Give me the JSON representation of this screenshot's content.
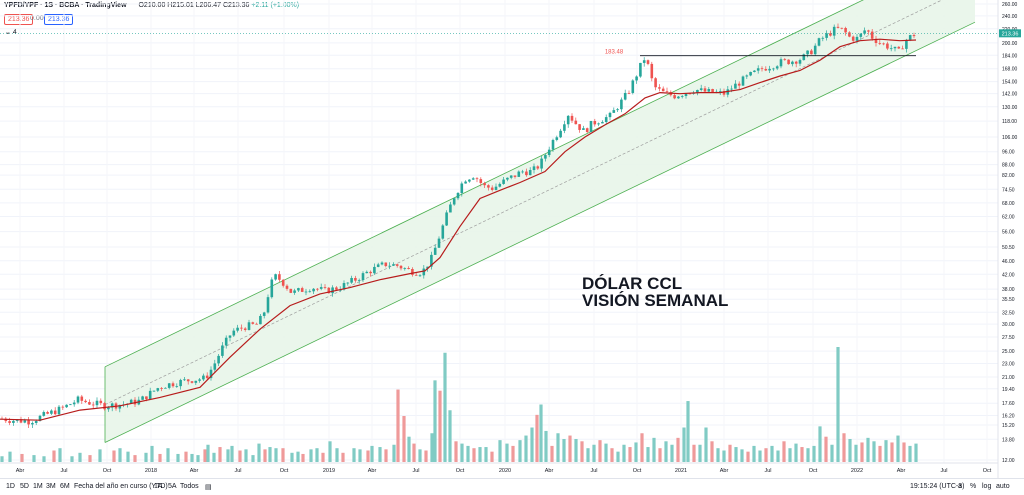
{
  "header": {
    "symbol": "YPFD/YPF · 1S · BCBA · TradingView",
    "ohlc": "O210.00 H215.01 L206.47 C213.36",
    "change": "+2.11 (+1.00%)",
    "price_left": "213.36",
    "price_zero": "0.00",
    "price_right": "213.36",
    "indicator": "4"
  },
  "annotations": {
    "title_line1": "DÓLAR CCL",
    "title_line2": "VISIÓN SEMANAL",
    "peak_label": "183.48",
    "last_price": "213.36"
  },
  "toolbar": {
    "timeframes": [
      "1D",
      "5D",
      "1M",
      "3M",
      "6M",
      "Fecha del año en curso (YTD)",
      "1A",
      "5A",
      "Todos"
    ],
    "clock": "19:15:24 (UTC-3)",
    "right_buttons": [
      "a",
      "%",
      "log",
      "auto"
    ]
  },
  "colors": {
    "up": "#26a69a",
    "down": "#ef5350",
    "ma": "#b71c1c",
    "channel_fill": "#e8f5e9",
    "channel_line": "#4caf50",
    "volume_up": "#80cbc4",
    "volume_down": "#ef9a9a"
  },
  "chart_data": {
    "type": "candlestick",
    "scale": "log",
    "ylim": [
      12,
      260
    ],
    "y_ticks": [
      12,
      13.8,
      15.2,
      16.2,
      17.6,
      19.4,
      21,
      23,
      25,
      27.5,
      30,
      32.5,
      35.5,
      38,
      42,
      46,
      50.5,
      56,
      62,
      68,
      74.5,
      82,
      88,
      96,
      106,
      118,
      130,
      142,
      154,
      168,
      184,
      200,
      220,
      240,
      260
    ],
    "x_labels": [
      "Abr",
      "Jul",
      "Oct",
      "2018",
      "Abr",
      "Jul",
      "Oct",
      "2019",
      "Abr",
      "Jul",
      "Oct",
      "2020",
      "Abr",
      "Jul",
      "Oct",
      "2021",
      "Abr",
      "Jul",
      "Oct",
      "2022",
      "Abr",
      "Jul",
      "Oct"
    ],
    "price_path": [
      [
        0,
        15.9
      ],
      [
        12,
        15.7
      ],
      [
        30,
        15.6
      ],
      [
        44,
        16.2
      ],
      [
        62,
        17.0
      ],
      [
        78,
        18.0
      ],
      [
        92,
        17.6
      ],
      [
        105,
        17.3
      ],
      [
        125,
        17.5
      ],
      [
        140,
        17.9
      ],
      [
        150,
        18.8
      ],
      [
        160,
        19.7
      ],
      [
        175,
        20.2
      ],
      [
        190,
        20.6
      ],
      [
        205,
        20.8
      ],
      [
        213,
        22.5
      ],
      [
        222,
        25.5
      ],
      [
        232,
        28.5
      ],
      [
        245,
        29.5
      ],
      [
        258,
        30.0
      ],
      [
        265,
        33.0
      ],
      [
        270,
        39.0
      ],
      [
        276,
        41.5
      ],
      [
        284,
        39.5
      ],
      [
        292,
        37.0
      ],
      [
        302,
        37.8
      ],
      [
        312,
        38.5
      ],
      [
        325,
        37.5
      ],
      [
        340,
        38.5
      ],
      [
        355,
        40.5
      ],
      [
        370,
        43.0
      ],
      [
        385,
        45.0
      ],
      [
        398,
        44.5
      ],
      [
        410,
        43.0
      ],
      [
        422,
        42.5
      ],
      [
        432,
        47.0
      ],
      [
        440,
        55.0
      ],
      [
        448,
        64.0
      ],
      [
        455,
        72.0
      ],
      [
        465,
        80.0
      ],
      [
        474,
        82.0
      ],
      [
        484,
        76.0
      ],
      [
        493,
        75.0
      ],
      [
        502,
        78.0
      ],
      [
        512,
        81.0
      ],
      [
        522,
        84.0
      ],
      [
        532,
        84.0
      ],
      [
        540,
        88.0
      ],
      [
        550,
        100.0
      ],
      [
        560,
        112.0
      ],
      [
        568,
        124.0
      ],
      [
        576,
        116.0
      ],
      [
        584,
        110.0
      ],
      [
        592,
        116.0
      ],
      [
        600,
        119.0
      ],
      [
        610,
        122.0
      ],
      [
        620,
        133.0
      ],
      [
        628,
        143.0
      ],
      [
        636,
        160.0
      ],
      [
        642,
        175.0
      ],
      [
        646,
        183.48
      ],
      [
        650,
        160.0
      ],
      [
        656,
        147.0
      ],
      [
        665,
        142.0
      ],
      [
        675,
        140.0
      ],
      [
        685,
        143.0
      ],
      [
        695,
        146.0
      ],
      [
        705,
        144.0
      ],
      [
        715,
        143.0
      ],
      [
        725,
        142.0
      ],
      [
        732,
        148.0
      ],
      [
        742,
        155.0
      ],
      [
        752,
        162.0
      ],
      [
        762,
        168.0
      ],
      [
        772,
        172.0
      ],
      [
        782,
        176.0
      ],
      [
        792,
        177.0
      ],
      [
        802,
        180.0
      ],
      [
        812,
        190.0
      ],
      [
        820,
        204.0
      ],
      [
        828,
        212.0
      ],
      [
        836,
        220.0
      ],
      [
        843,
        218.0
      ],
      [
        850,
        207.0
      ],
      [
        858,
        206.0
      ],
      [
        866,
        220.0
      ],
      [
        872,
        208.0
      ],
      [
        880,
        200.0
      ],
      [
        887,
        196.0
      ],
      [
        893,
        192.0
      ],
      [
        899,
        188.0
      ],
      [
        905,
        203.0
      ],
      [
        911,
        209.0
      ],
      [
        916,
        213.36
      ]
    ],
    "ma_path": [
      [
        0,
        15.8
      ],
      [
        40,
        15.7
      ],
      [
        80,
        16.8
      ],
      [
        120,
        17.3
      ],
      [
        160,
        18.3
      ],
      [
        200,
        19.6
      ],
      [
        230,
        24.0
      ],
      [
        260,
        29.0
      ],
      [
        290,
        34.0
      ],
      [
        320,
        36.8
      ],
      [
        350,
        38.4
      ],
      [
        380,
        40.5
      ],
      [
        410,
        42.2
      ],
      [
        425,
        43.0
      ],
      [
        440,
        47.0
      ],
      [
        460,
        58.0
      ],
      [
        480,
        70.0
      ],
      [
        500,
        74.0
      ],
      [
        520,
        78.0
      ],
      [
        545,
        84.0
      ],
      [
        565,
        96.0
      ],
      [
        585,
        106.0
      ],
      [
        605,
        115.0
      ],
      [
        625,
        124.0
      ],
      [
        645,
        138.0
      ],
      [
        660,
        143.0
      ],
      [
        680,
        142.0
      ],
      [
        700,
        143.0
      ],
      [
        720,
        143.0
      ],
      [
        740,
        146.0
      ],
      [
        760,
        153.0
      ],
      [
        780,
        160.0
      ],
      [
        800,
        166.0
      ],
      [
        820,
        178.0
      ],
      [
        840,
        195.0
      ],
      [
        860,
        203.0
      ],
      [
        880,
        205.0
      ],
      [
        900,
        203.0
      ],
      [
        916,
        204.0
      ]
    ],
    "channel": {
      "x_start": 105,
      "x_end": 975,
      "lower_start": 13.5,
      "lower_end": 230,
      "upper_start": 22.5,
      "upper_end": 385
    },
    "horizontal_line": {
      "value": 183.48,
      "x_from": 640,
      "x_to": 916
    },
    "volume": [
      [
        2,
        0.05,
        "up"
      ],
      [
        10,
        0.09,
        "up"
      ],
      [
        22,
        0.07,
        "down"
      ],
      [
        34,
        0.06,
        "up"
      ],
      [
        44,
        0.05,
        "up"
      ],
      [
        54,
        0.1,
        "down"
      ],
      [
        60,
        0.12,
        "up"
      ],
      [
        72,
        0.05,
        "up"
      ],
      [
        80,
        0.08,
        "up"
      ],
      [
        90,
        0.06,
        "down"
      ],
      [
        100,
        0.11,
        "up"
      ],
      [
        114,
        0.1,
        "down"
      ],
      [
        120,
        0.12,
        "up"
      ],
      [
        128,
        0.09,
        "up"
      ],
      [
        135,
        0.06,
        "down"
      ],
      [
        146,
        0.08,
        "up"
      ],
      [
        152,
        0.14,
        "up"
      ],
      [
        160,
        0.07,
        "down"
      ],
      [
        168,
        0.12,
        "up"
      ],
      [
        178,
        0.07,
        "up"
      ],
      [
        186,
        0.09,
        "down"
      ],
      [
        192,
        0.07,
        "up"
      ],
      [
        198,
        0.06,
        "up"
      ],
      [
        205,
        0.11,
        "down"
      ],
      [
        208,
        0.15,
        "up"
      ],
      [
        214,
        0.08,
        "up"
      ],
      [
        220,
        0.13,
        "down"
      ],
      [
        228,
        0.11,
        "up"
      ],
      [
        232,
        0.14,
        "up"
      ],
      [
        240,
        0.1,
        "down"
      ],
      [
        246,
        0.11,
        "up"
      ],
      [
        253,
        0.06,
        "up"
      ],
      [
        259,
        0.16,
        "up"
      ],
      [
        265,
        0.11,
        "down"
      ],
      [
        270,
        0.13,
        "up"
      ],
      [
        276,
        0.12,
        "up"
      ],
      [
        283,
        0.12,
        "down"
      ],
      [
        292,
        0.08,
        "up"
      ],
      [
        298,
        0.09,
        "up"
      ],
      [
        303,
        0.07,
        "down"
      ],
      [
        311,
        0.11,
        "up"
      ],
      [
        317,
        0.12,
        "up"
      ],
      [
        323,
        0.08,
        "down"
      ],
      [
        330,
        0.18,
        "up"
      ],
      [
        337,
        0.12,
        "up"
      ],
      [
        343,
        0.08,
        "down"
      ],
      [
        354,
        0.12,
        "up"
      ],
      [
        360,
        0.11,
        "up"
      ],
      [
        368,
        0.1,
        "down"
      ],
      [
        372,
        0.14,
        "up"
      ],
      [
        380,
        0.13,
        "up"
      ],
      [
        386,
        0.11,
        "down"
      ],
      [
        394,
        0.15,
        "up"
      ],
      [
        398,
        0.63,
        "down"
      ],
      [
        404,
        0.4,
        "down"
      ],
      [
        409,
        0.22,
        "up"
      ],
      [
        414,
        0.16,
        "down"
      ],
      [
        420,
        0.11,
        "up"
      ],
      [
        426,
        0.1,
        "down"
      ],
      [
        432,
        0.25,
        "up"
      ],
      [
        435,
        0.71,
        "up"
      ],
      [
        440,
        0.62,
        "down"
      ],
      [
        445,
        0.95,
        "up"
      ],
      [
        450,
        0.45,
        "up"
      ],
      [
        456,
        0.18,
        "down"
      ],
      [
        462,
        0.16,
        "up"
      ],
      [
        468,
        0.14,
        "up"
      ],
      [
        474,
        0.12,
        "down"
      ],
      [
        480,
        0.13,
        "up"
      ],
      [
        486,
        0.13,
        "up"
      ],
      [
        492,
        0.09,
        "down"
      ],
      [
        500,
        0.19,
        "up"
      ],
      [
        507,
        0.16,
        "up"
      ],
      [
        513,
        0.14,
        "down"
      ],
      [
        520,
        0.19,
        "up"
      ],
      [
        526,
        0.23,
        "up"
      ],
      [
        532,
        0.3,
        "up"
      ],
      [
        537,
        0.41,
        "down"
      ],
      [
        541,
        0.5,
        "up"
      ],
      [
        546,
        0.27,
        "up"
      ],
      [
        552,
        0.14,
        "down"
      ],
      [
        558,
        0.25,
        "up"
      ],
      [
        564,
        0.2,
        "up"
      ],
      [
        570,
        0.23,
        "down"
      ],
      [
        576,
        0.2,
        "up"
      ],
      [
        582,
        0.18,
        "down"
      ],
      [
        588,
        0.12,
        "up"
      ],
      [
        594,
        0.15,
        "up"
      ],
      [
        600,
        0.19,
        "down"
      ],
      [
        606,
        0.16,
        "up"
      ],
      [
        612,
        0.12,
        "down"
      ],
      [
        618,
        0.09,
        "up"
      ],
      [
        624,
        0.15,
        "up"
      ],
      [
        630,
        0.13,
        "down"
      ],
      [
        636,
        0.17,
        "up"
      ],
      [
        642,
        0.25,
        "down"
      ],
      [
        648,
        0.13,
        "up"
      ],
      [
        654,
        0.21,
        "up"
      ],
      [
        660,
        0.12,
        "down"
      ],
      [
        666,
        0.18,
        "up"
      ],
      [
        672,
        0.15,
        "up"
      ],
      [
        678,
        0.21,
        "down"
      ],
      [
        684,
        0.3,
        "up"
      ],
      [
        688,
        0.53,
        "up"
      ],
      [
        694,
        0.15,
        "down"
      ],
      [
        700,
        0.15,
        "up"
      ],
      [
        706,
        0.3,
        "up"
      ],
      [
        712,
        0.18,
        "down"
      ],
      [
        718,
        0.12,
        "up"
      ],
      [
        724,
        0.1,
        "up"
      ],
      [
        730,
        0.15,
        "down"
      ],
      [
        736,
        0.13,
        "up"
      ],
      [
        742,
        0.11,
        "up"
      ],
      [
        748,
        0.09,
        "down"
      ],
      [
        754,
        0.14,
        "up"
      ],
      [
        760,
        0.1,
        "up"
      ],
      [
        766,
        0.12,
        "down"
      ],
      [
        772,
        0.14,
        "up"
      ],
      [
        778,
        0.1,
        "up"
      ],
      [
        784,
        0.18,
        "down"
      ],
      [
        790,
        0.12,
        "up"
      ],
      [
        796,
        0.16,
        "up"
      ],
      [
        802,
        0.13,
        "down"
      ],
      [
        808,
        0.12,
        "up"
      ],
      [
        814,
        0.14,
        "up"
      ],
      [
        820,
        0.31,
        "up"
      ],
      [
        826,
        0.22,
        "down"
      ],
      [
        832,
        0.15,
        "up"
      ],
      [
        838,
        1.0,
        "up"
      ],
      [
        844,
        0.25,
        "down"
      ],
      [
        850,
        0.2,
        "up"
      ],
      [
        856,
        0.15,
        "up"
      ],
      [
        862,
        0.17,
        "down"
      ],
      [
        868,
        0.21,
        "up"
      ],
      [
        874,
        0.18,
        "up"
      ],
      [
        880,
        0.14,
        "down"
      ],
      [
        886,
        0.19,
        "up"
      ],
      [
        892,
        0.17,
        "down"
      ],
      [
        898,
        0.23,
        "up"
      ],
      [
        904,
        0.17,
        "down"
      ],
      [
        910,
        0.14,
        "up"
      ],
      [
        916,
        0.16,
        "up"
      ]
    ]
  }
}
